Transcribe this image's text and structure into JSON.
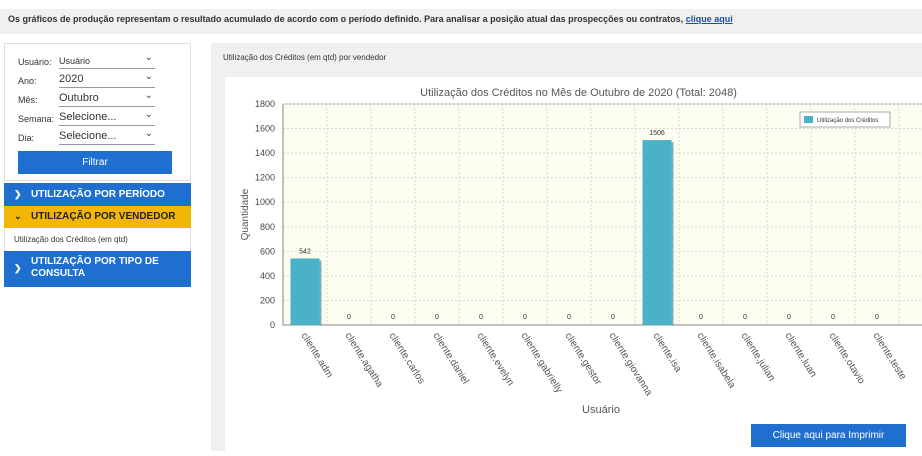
{
  "info": {
    "text": "Os gráficos de produção representam o resultado acumulado de acordo com o período definido. Para analisar a posição atual das prospecções ou contratos,",
    "link": "clique aqui"
  },
  "filters": {
    "usuario_label": "Usuário:",
    "usuario_value": "Usuário",
    "ano_label": "Ano:",
    "ano_value": "2020",
    "mes_label": "Mês:",
    "mes_value": "Outubro",
    "semana_label": "Semana:",
    "semana_value": "Selecione...",
    "dia_label": "Dia:",
    "dia_value": "Selecione...",
    "filtrar": "Filtrar"
  },
  "menu": {
    "periodo": "UTILIZAÇÃO POR PERÍODO",
    "vendedor": "UTILIZAÇÃO POR VENDEDOR",
    "vendedor_sub": "Utilização dos Créditos (em qtd)",
    "tipo_line1": "UTILIZAÇÃO POR TIPO DE",
    "tipo_line2": "CONSULTA"
  },
  "chart_panel": {
    "header": "Utilização dos Créditos (em qtd) por vendedor",
    "print_button": "Clique aqui para Imprimir"
  },
  "colors": {
    "primary": "#1e6fd0",
    "active_menu": "#f2b705",
    "bar": "#4bb1c7",
    "plot_bg": "#fdfcf0"
  },
  "chart_data": {
    "type": "bar",
    "title": "Utilização dos Créditos no Mês de Outubro de 2020 (Total: 2048)",
    "xlabel": "Usuário",
    "ylabel": "Quantidade",
    "ylim": [
      0,
      1800
    ],
    "yticks": [
      0,
      200,
      400,
      600,
      800,
      1000,
      1200,
      1400,
      1600,
      1800
    ],
    "categories": [
      "cliente.adm",
      "cliente.agatha",
      "cliente.carlos",
      "cliente.daniel",
      "cliente.evelyn",
      "cliente.gabrielly",
      "cliente.gestor",
      "cliente.giovanna",
      "cliente.isa",
      "cliente.isabela",
      "cliente.julian",
      "cliente.luan",
      "cliente.otavio",
      "cliente.teste"
    ],
    "series": [
      {
        "name": "Utilização dos Créditos",
        "values": [
          542,
          0,
          0,
          0,
          0,
          0,
          0,
          0,
          1506,
          0,
          0,
          0,
          0,
          0
        ]
      }
    ],
    "legend_position": "top-right",
    "grid": true
  }
}
